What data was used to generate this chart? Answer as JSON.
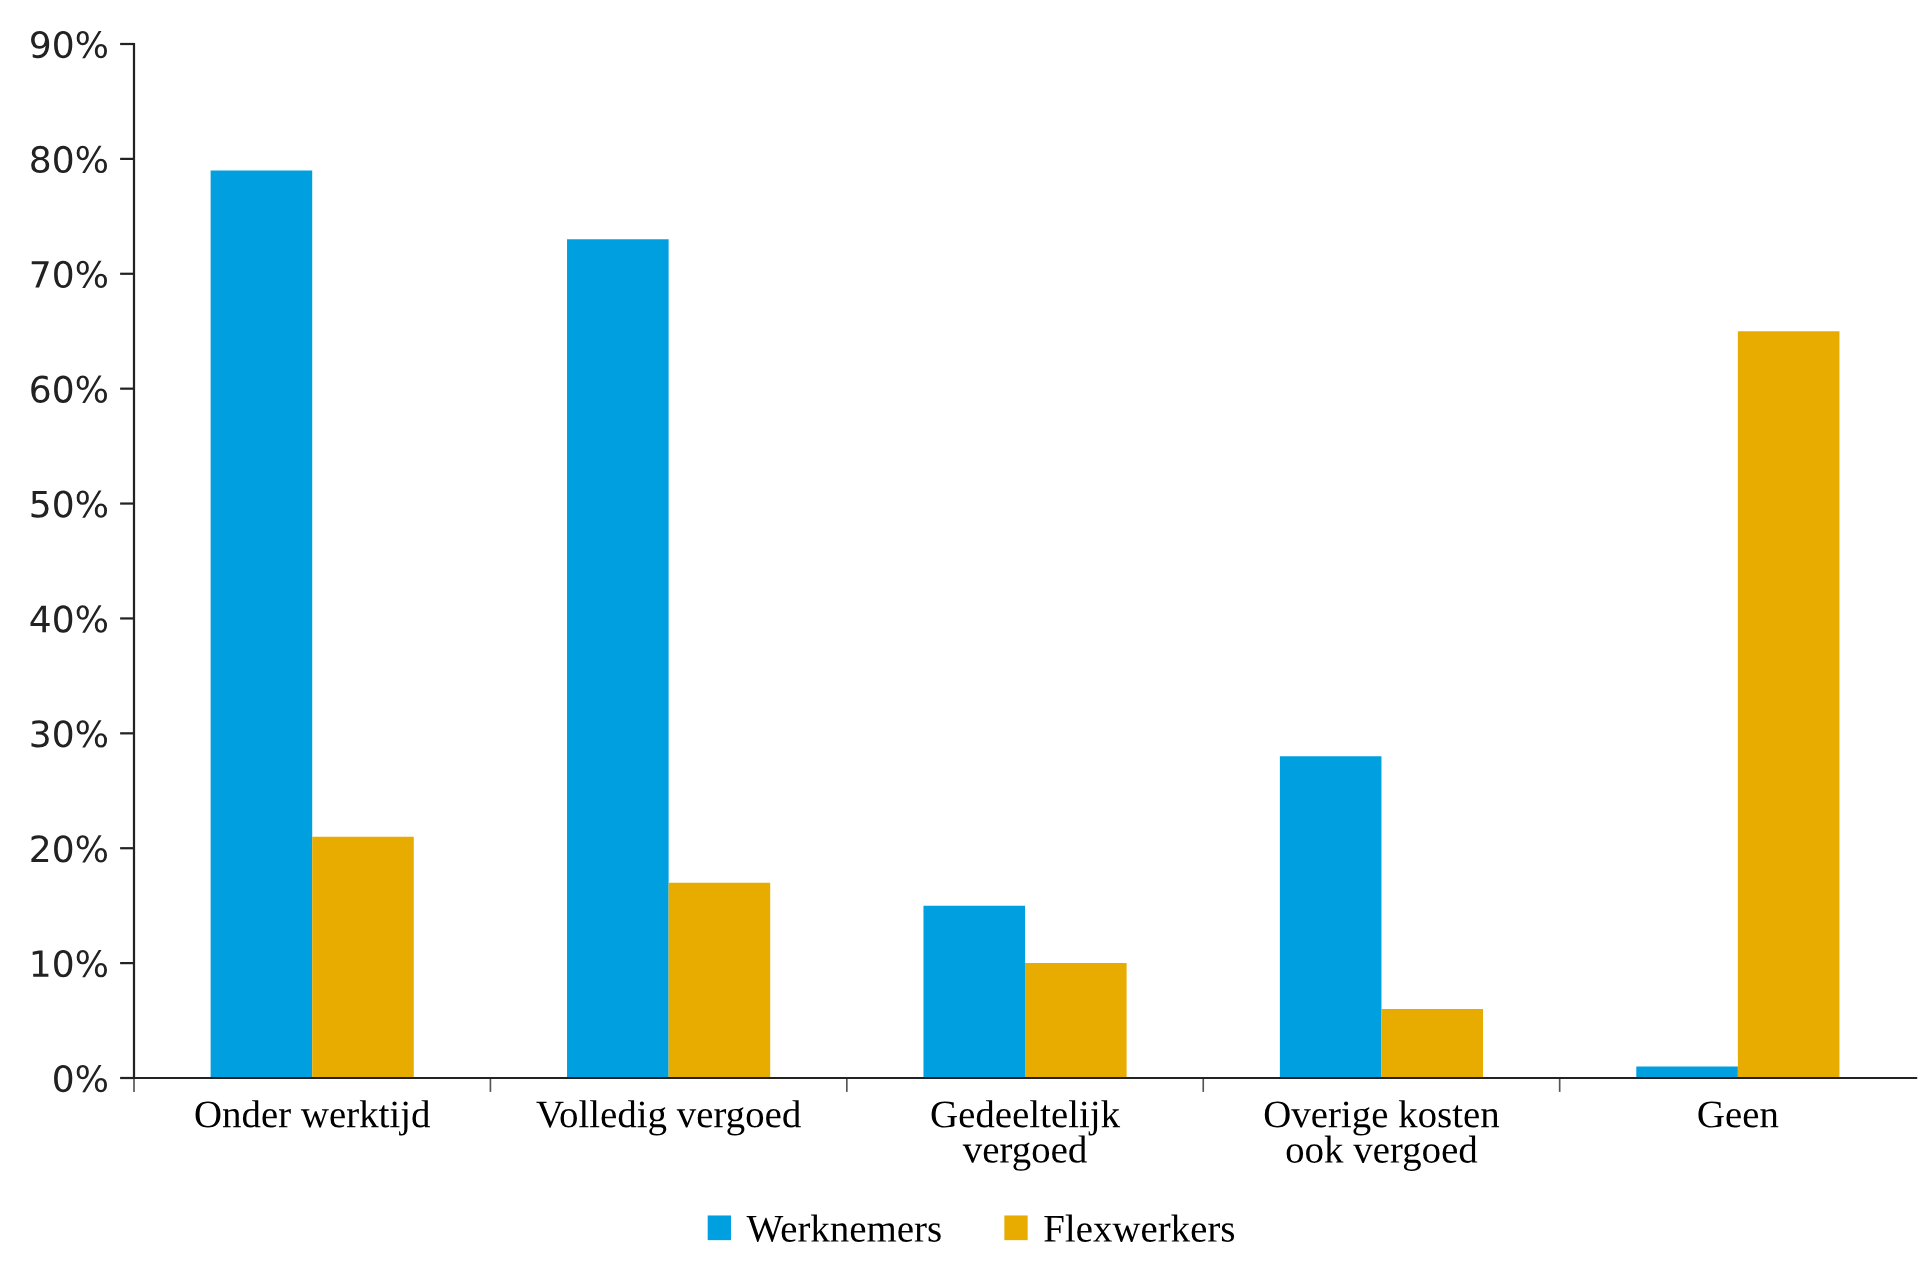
{
  "chart_data": {
    "type": "bar",
    "categories": [
      "Onder werktijd",
      "Volledig vergoed",
      "Gedeeltelijk\nvergoed",
      "Overige kosten\nook vergoed",
      "Geen"
    ],
    "series": [
      {
        "name": "Werknemers",
        "color": "#009fe0",
        "values": [
          79,
          73,
          15,
          28,
          1
        ]
      },
      {
        "name": "Flexwerkers",
        "color": "#e8ac00",
        "values": [
          21,
          17,
          10,
          6,
          65
        ]
      }
    ],
    "ylim": [
      0,
      90
    ],
    "yticks": [
      {
        "value": 0,
        "label": "0%"
      },
      {
        "value": 10,
        "label": "10%"
      },
      {
        "value": 20,
        "label": "20%"
      },
      {
        "value": 30,
        "label": "30%"
      },
      {
        "value": 40,
        "label": "40%"
      },
      {
        "value": 50,
        "label": "50%"
      },
      {
        "value": 60,
        "label": "60%"
      },
      {
        "value": 70,
        "label": "70%"
      },
      {
        "value": 80,
        "label": "80%"
      },
      {
        "value": 90,
        "label": "90%"
      }
    ],
    "grid": false,
    "legend": "bottom"
  }
}
